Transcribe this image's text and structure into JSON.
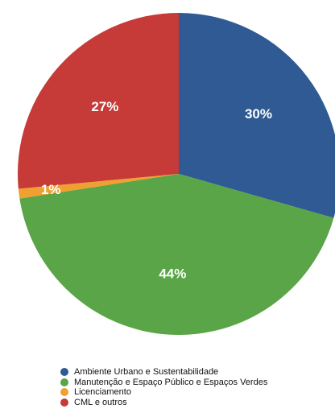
{
  "chart_data": {
    "type": "pie",
    "title": "",
    "start_angle_deg": 0,
    "direction": "clockwise",
    "slices": [
      {
        "name": "Ambiente Urbano e Sustentabilidade",
        "value": 30,
        "label": "30%",
        "color": "#2f5a93"
      },
      {
        "name": "Manutenção e Espaço Público e Espaços Verdes",
        "value": 44,
        "label": "44%",
        "color": "#5aa547"
      },
      {
        "name": "Licenciamento",
        "value": 1,
        "label": "1%",
        "color": "#f0a030"
      },
      {
        "name": "CML e outros",
        "value": 27,
        "label": "27%",
        "color": "#c63a37"
      }
    ],
    "legend_position": "bottom"
  }
}
